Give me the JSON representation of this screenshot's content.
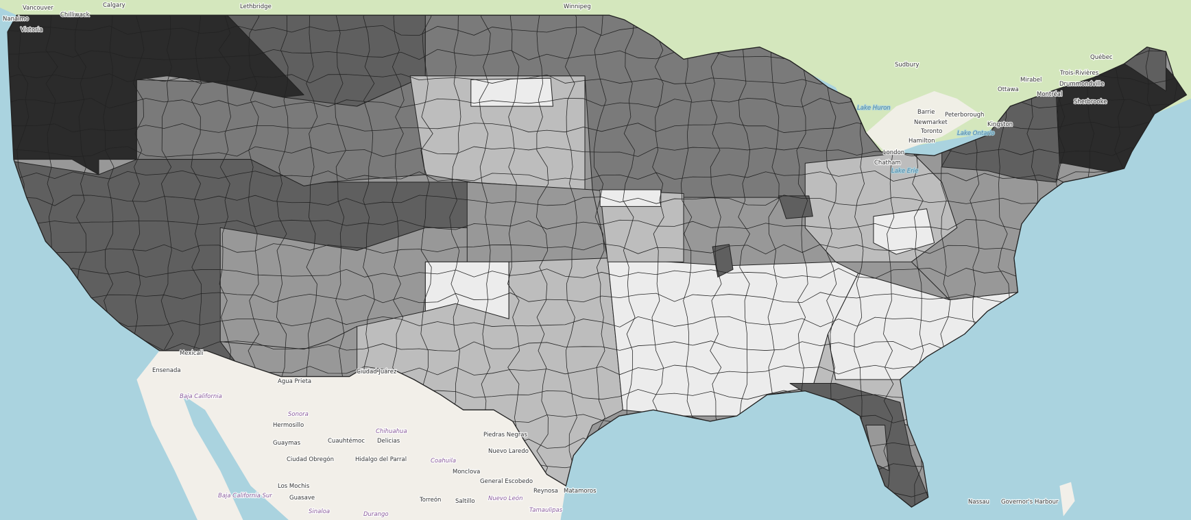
{
  "map": {
    "type": "choropleth",
    "basemap": "OpenStreetMap",
    "colors": {
      "ocean": "#aad3df",
      "canada": "#d4e7bd",
      "mexico": "#f2efe9",
      "shade_darkest": "#2b2b2b",
      "shade_dark": "#5f5f5f",
      "shade_mid_dark": "#7a7a7a",
      "shade_mid": "#989898",
      "shade_light": "#bdbdbd",
      "shade_lighter": "#cfcfcf",
      "shade_lightest": "#ececec"
    },
    "city_labels": [
      "Vancouver",
      "Nanaimo",
      "Victoria",
      "Chilliwack",
      "Calgary",
      "Lethbridge",
      "Winnipeg",
      "Sudbury",
      "Ottawa",
      "Montréal",
      "Québec",
      "Trois-Rivières",
      "Drummondville",
      "Sherbrooke",
      "Mirabel",
      "Barrie",
      "Peterborough",
      "Newmarket",
      "Toronto",
      "Hamilton",
      "London",
      "Chatham",
      "Kingston",
      "Mexicali",
      "Ensenada",
      "Ciudad Juárez",
      "Agua Prieta",
      "Hermosillo",
      "Guaymas",
      "Ciudad Obregón",
      "Los Mochis",
      "Guasave",
      "Cuauhtémoc",
      "Delicias",
      "Hidalgo del Parral",
      "Piedras Negras",
      "Nuevo Laredo",
      "Monclova",
      "General Escobedo",
      "Torreón",
      "Saltillo",
      "Reynosa",
      "Matamoros",
      "Nassau",
      "Governor's Harbour"
    ],
    "region_labels": [
      "Baja California",
      "Baja California Sur",
      "Sonora",
      "Chihuahua",
      "Coahuila",
      "Nuevo León",
      "Tamaulipas",
      "Sinaloa",
      "Durango"
    ],
    "water_labels": [
      "Lake Huron",
      "Lake Erie",
      "Lake Ontario"
    ]
  }
}
